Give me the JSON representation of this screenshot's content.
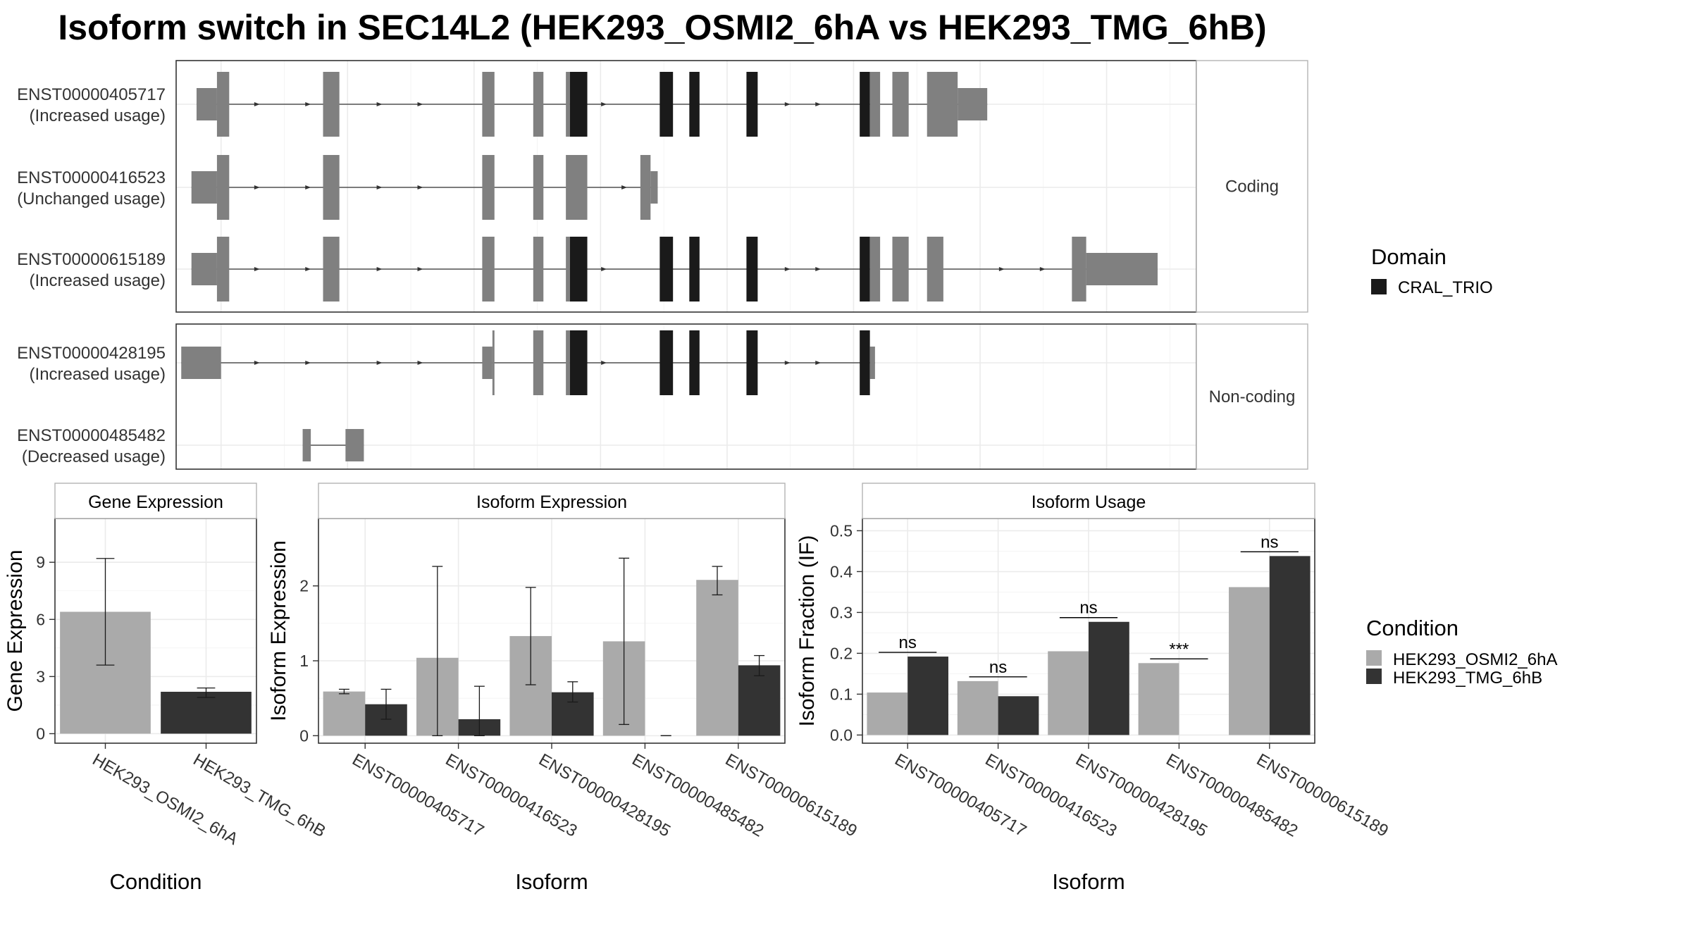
{
  "title": "Isoform switch in SEC14L2 (HEK293_OSMI2_6hA vs HEK293_TMG_6hB)",
  "colors": {
    "exon_nodomain": "#808080",
    "exon_domain": "#1a1a1a",
    "condition_a": "#aaaaaa",
    "condition_b": "#333333",
    "strip_border": "#b3b3b3",
    "grid": "#ebebeb"
  },
  "transcript_panel": {
    "groups": [
      {
        "label": "Coding",
        "transcripts": [
          {
            "id": "ENST00000405717",
            "usage": "(Increased usage)",
            "exons": [
              {
                "s": 0.02,
                "e": 0.04,
                "h": "utr"
              },
              {
                "s": 0.04,
                "e": 0.052,
                "h": "cds"
              },
              {
                "s": 0.144,
                "e": 0.16,
                "h": "cds"
              },
              {
                "s": 0.3,
                "e": 0.312,
                "h": "cds"
              },
              {
                "s": 0.35,
                "e": 0.36,
                "h": "cds"
              },
              {
                "s": 0.382,
                "e": 0.386,
                "h": "cds"
              },
              {
                "s": 0.386,
                "e": 0.403,
                "h": "cds",
                "domain": true
              },
              {
                "s": 0.474,
                "e": 0.487,
                "h": "cds",
                "domain": true
              },
              {
                "s": 0.503,
                "e": 0.513,
                "h": "cds",
                "domain": true
              },
              {
                "s": 0.559,
                "e": 0.57,
                "h": "cds",
                "domain": true
              },
              {
                "s": 0.67,
                "e": 0.68,
                "h": "cds",
                "domain": true
              },
              {
                "s": 0.68,
                "e": 0.69,
                "h": "cds"
              },
              {
                "s": 0.702,
                "e": 0.718,
                "h": "cds"
              },
              {
                "s": 0.736,
                "e": 0.766,
                "h": "cds"
              },
              {
                "s": 0.766,
                "e": 0.795,
                "h": "utr"
              }
            ],
            "arrows": [
              0.08,
              0.13,
              0.2,
              0.24,
              0.42,
              0.6,
              0.63
            ]
          },
          {
            "id": "ENST00000416523",
            "usage": "(Unchanged usage)",
            "exons": [
              {
                "s": 0.015,
                "e": 0.04,
                "h": "utr"
              },
              {
                "s": 0.04,
                "e": 0.052,
                "h": "cds"
              },
              {
                "s": 0.144,
                "e": 0.16,
                "h": "cds"
              },
              {
                "s": 0.3,
                "e": 0.312,
                "h": "cds"
              },
              {
                "s": 0.35,
                "e": 0.36,
                "h": "cds"
              },
              {
                "s": 0.382,
                "e": 0.403,
                "h": "cds"
              },
              {
                "s": 0.455,
                "e": 0.465,
                "h": "cds"
              },
              {
                "s": 0.465,
                "e": 0.472,
                "h": "utr"
              }
            ],
            "arrows": [
              0.08,
              0.13,
              0.2,
              0.24,
              0.44
            ]
          },
          {
            "id": "ENST00000615189",
            "usage": "(Increased usage)",
            "exons": [
              {
                "s": 0.015,
                "e": 0.04,
                "h": "utr"
              },
              {
                "s": 0.04,
                "e": 0.052,
                "h": "cds"
              },
              {
                "s": 0.144,
                "e": 0.16,
                "h": "cds"
              },
              {
                "s": 0.3,
                "e": 0.312,
                "h": "cds"
              },
              {
                "s": 0.35,
                "e": 0.36,
                "h": "cds"
              },
              {
                "s": 0.382,
                "e": 0.386,
                "h": "cds"
              },
              {
                "s": 0.386,
                "e": 0.403,
                "h": "cds",
                "domain": true
              },
              {
                "s": 0.474,
                "e": 0.487,
                "h": "cds",
                "domain": true
              },
              {
                "s": 0.503,
                "e": 0.513,
                "h": "cds",
                "domain": true
              },
              {
                "s": 0.559,
                "e": 0.57,
                "h": "cds",
                "domain": true
              },
              {
                "s": 0.67,
                "e": 0.68,
                "h": "cds",
                "domain": true
              },
              {
                "s": 0.68,
                "e": 0.69,
                "h": "cds"
              },
              {
                "s": 0.702,
                "e": 0.718,
                "h": "cds"
              },
              {
                "s": 0.736,
                "e": 0.752,
                "h": "cds"
              },
              {
                "s": 0.878,
                "e": 0.892,
                "h": "cds"
              },
              {
                "s": 0.892,
                "e": 0.962,
                "h": "utr"
              }
            ],
            "arrows": [
              0.08,
              0.13,
              0.2,
              0.24,
              0.42,
              0.6,
              0.63,
              0.81,
              0.85
            ]
          }
        ]
      },
      {
        "label": "Non-coding",
        "transcripts": [
          {
            "id": "ENST00000428195",
            "usage": "(Increased usage)",
            "exons": [
              {
                "s": 0.005,
                "e": 0.044,
                "h": "utr"
              },
              {
                "s": 0.3,
                "e": 0.31,
                "h": "utr"
              },
              {
                "s": 0.31,
                "e": 0.312,
                "h": "cds"
              },
              {
                "s": 0.35,
                "e": 0.36,
                "h": "cds"
              },
              {
                "s": 0.382,
                "e": 0.386,
                "h": "cds"
              },
              {
                "s": 0.386,
                "e": 0.403,
                "h": "cds",
                "domain": true
              },
              {
                "s": 0.474,
                "e": 0.487,
                "h": "cds",
                "domain": true
              },
              {
                "s": 0.503,
                "e": 0.513,
                "h": "cds",
                "domain": true
              },
              {
                "s": 0.559,
                "e": 0.57,
                "h": "cds",
                "domain": true
              },
              {
                "s": 0.67,
                "e": 0.68,
                "h": "cds",
                "domain": true
              },
              {
                "s": 0.68,
                "e": 0.685,
                "h": "utr"
              }
            ],
            "arrows": [
              0.08,
              0.13,
              0.2,
              0.24,
              0.42,
              0.6,
              0.63
            ]
          },
          {
            "id": "ENST00000485482",
            "usage": "(Decreased usage)",
            "exons": [
              {
                "s": 0.124,
                "e": 0.132,
                "h": "utr"
              },
              {
                "s": 0.166,
                "e": 0.184,
                "h": "utr"
              }
            ],
            "arrows": []
          }
        ]
      }
    ]
  },
  "legend_domain": {
    "title": "Domain",
    "items": [
      {
        "label": "CRAL_TRIO"
      }
    ]
  },
  "legend_condition": {
    "title": "Condition",
    "items": [
      {
        "label": "HEK293_OSMI2_6hA"
      },
      {
        "label": "HEK293_TMG_6hB"
      }
    ]
  },
  "chart_data": [
    {
      "type": "bar",
      "title": "Gene Expression",
      "xlabel": "Condition",
      "ylabel": "Gene Expression",
      "categories": [
        "HEK293_OSMI2_6hA",
        "HEK293_TMG_6hB"
      ],
      "values": [
        6.4,
        2.2
      ],
      "error_low": [
        3.6,
        1.9
      ],
      "error_high": [
        9.2,
        2.4
      ],
      "ylim": [
        -0.5,
        11.3
      ],
      "yticks": [
        0,
        3,
        6,
        9
      ]
    },
    {
      "type": "bar",
      "title": "Isoform Expression",
      "xlabel": "Isoform",
      "ylabel": "Isoform Expression",
      "categories": [
        "ENST00000405717",
        "ENST00000416523",
        "ENST00000428195",
        "ENST00000485482",
        "ENST00000615189"
      ],
      "series": [
        {
          "name": "HEK293_OSMI2_6hA",
          "values": [
            0.59,
            1.04,
            1.33,
            1.26,
            2.08
          ],
          "error_low": [
            0.56,
            0.0,
            0.68,
            0.15,
            1.88
          ],
          "error_high": [
            0.62,
            2.26,
            1.98,
            2.37,
            2.26
          ]
        },
        {
          "name": "HEK293_TMG_6hB",
          "values": [
            0.42,
            0.22,
            0.58,
            0.0,
            0.94
          ],
          "error_low": [
            0.22,
            0.0,
            0.45,
            0.0,
            0.8
          ],
          "error_high": [
            0.62,
            0.66,
            0.72,
            0.0,
            1.07
          ]
        }
      ],
      "ylim": [
        -0.1,
        2.9
      ],
      "yticks": [
        0,
        1,
        2
      ]
    },
    {
      "type": "bar",
      "title": "Isoform Usage",
      "xlabel": "Isoform",
      "ylabel": "Isoform Fraction (IF)",
      "categories": [
        "ENST00000405717",
        "ENST00000416523",
        "ENST00000428195",
        "ENST00000485482",
        "ENST00000615189"
      ],
      "series": [
        {
          "name": "HEK293_OSMI2_6hA",
          "values": [
            0.104,
            0.132,
            0.205,
            0.176,
            0.362
          ]
        },
        {
          "name": "HEK293_TMG_6hB",
          "values": [
            0.192,
            0.095,
            0.277,
            0.0,
            0.438
          ]
        }
      ],
      "significance": [
        "ns",
        "ns",
        "ns",
        "***",
        "ns"
      ],
      "ylim": [
        -0.02,
        0.53
      ],
      "yticks": [
        0.0,
        0.1,
        0.2,
        0.3,
        0.4,
        0.5
      ],
      "ytick_labels": [
        "0.0",
        "0.1",
        "0.2",
        "0.3",
        "0.4",
        "0.5"
      ]
    }
  ]
}
